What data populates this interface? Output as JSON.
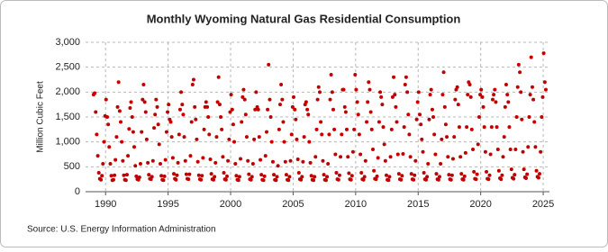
{
  "chart_data": {
    "type": "scatter",
    "title": "Monthly Wyoming Natural Gas Residential Consumption",
    "ylabel": "Million Cubic Feet",
    "source": "Source: U.S. Energy Information Administration",
    "color": "#c00000",
    "grid": true,
    "xlim": [
      1988.4,
      2025.5
    ],
    "xticks": [
      1990,
      1995,
      2000,
      2005,
      2010,
      2015,
      2020,
      2025
    ],
    "ylim": [
      0,
      3000
    ],
    "yticks": [
      0,
      {
        "value": 500,
        "label": "500"
      },
      {
        "value": 1000,
        "label": "1,000"
      },
      {
        "value": 1500,
        "label": "1,500"
      },
      {
        "value": 2000,
        "label": "2,000"
      },
      {
        "value": 2500,
        "label": "2,500"
      },
      {
        "value": 3000,
        "label": "3,000"
      }
    ],
    "x": [
      1989.04,
      1989.13,
      1989.21,
      1989.29,
      1989.38,
      1989.46,
      1989.54,
      1989.63,
      1989.71,
      1989.79,
      1989.88,
      1989.96,
      1990.04,
      1990.13,
      1990.21,
      1990.29,
      1990.38,
      1990.46,
      1990.54,
      1990.63,
      1990.71,
      1990.79,
      1990.88,
      1990.96,
      1991.04,
      1991.13,
      1991.21,
      1991.29,
      1991.38,
      1991.46,
      1991.54,
      1991.63,
      1991.71,
      1991.79,
      1991.88,
      1991.96,
      1992.04,
      1992.13,
      1992.21,
      1992.29,
      1992.38,
      1992.46,
      1992.54,
      1992.63,
      1992.71,
      1992.79,
      1992.88,
      1992.96,
      1993.04,
      1993.13,
      1993.21,
      1993.29,
      1993.38,
      1993.46,
      1993.54,
      1993.63,
      1993.71,
      1993.79,
      1993.88,
      1993.96,
      1994.04,
      1994.13,
      1994.21,
      1994.29,
      1994.38,
      1994.46,
      1994.54,
      1994.63,
      1994.71,
      1994.79,
      1994.88,
      1994.96,
      1995.04,
      1995.13,
      1995.21,
      1995.29,
      1995.38,
      1995.46,
      1995.54,
      1995.63,
      1995.71,
      1995.79,
      1995.88,
      1995.96,
      1996.04,
      1996.13,
      1996.21,
      1996.29,
      1996.38,
      1996.46,
      1996.54,
      1996.63,
      1996.71,
      1996.79,
      1996.88,
      1996.96,
      1997.04,
      1997.13,
      1997.21,
      1997.29,
      1997.38,
      1997.46,
      1997.54,
      1997.63,
      1997.71,
      1997.79,
      1997.88,
      1997.96,
      1998.04,
      1998.13,
      1998.21,
      1998.29,
      1998.38,
      1998.46,
      1998.54,
      1998.63,
      1998.71,
      1998.79,
      1998.88,
      1998.96,
      1999.04,
      1999.13,
      1999.21,
      1999.29,
      1999.38,
      1999.46,
      1999.54,
      1999.63,
      1999.71,
      1999.79,
      1999.88,
      1999.96,
      2000.04,
      2000.13,
      2000.21,
      2000.29,
      2000.38,
      2000.46,
      2000.54,
      2000.63,
      2000.71,
      2000.79,
      2000.88,
      2000.96,
      2001.04,
      2001.13,
      2001.21,
      2001.29,
      2001.38,
      2001.46,
      2001.54,
      2001.63,
      2001.71,
      2001.79,
      2001.88,
      2001.96,
      2002.04,
      2002.13,
      2002.21,
      2002.29,
      2002.38,
      2002.46,
      2002.54,
      2002.63,
      2002.71,
      2002.79,
      2002.88,
      2002.96,
      2003.04,
      2003.13,
      2003.21,
      2003.29,
      2003.38,
      2003.46,
      2003.54,
      2003.63,
      2003.71,
      2003.79,
      2003.88,
      2003.96,
      2004.04,
      2004.13,
      2004.21,
      2004.29,
      2004.38,
      2004.46,
      2004.54,
      2004.63,
      2004.71,
      2004.79,
      2004.88,
      2004.96,
      2005.04,
      2005.13,
      2005.21,
      2005.29,
      2005.38,
      2005.46,
      2005.54,
      2005.63,
      2005.71,
      2005.79,
      2005.88,
      2005.96,
      2006.04,
      2006.13,
      2006.21,
      2006.29,
      2006.38,
      2006.46,
      2006.54,
      2006.63,
      2006.71,
      2006.79,
      2006.88,
      2006.96,
      2007.04,
      2007.13,
      2007.21,
      2007.29,
      2007.38,
      2007.46,
      2007.54,
      2007.63,
      2007.71,
      2007.79,
      2007.88,
      2007.96,
      2008.04,
      2008.13,
      2008.21,
      2008.29,
      2008.38,
      2008.46,
      2008.54,
      2008.63,
      2008.71,
      2008.79,
      2008.88,
      2008.96,
      2009.04,
      2009.13,
      2009.21,
      2009.29,
      2009.38,
      2009.46,
      2009.54,
      2009.63,
      2009.71,
      2009.79,
      2009.88,
      2009.96,
      2010.04,
      2010.13,
      2010.21,
      2010.29,
      2010.38,
      2010.46,
      2010.54,
      2010.63,
      2010.71,
      2010.79,
      2010.88,
      2010.96,
      2011.04,
      2011.13,
      2011.21,
      2011.29,
      2011.38,
      2011.46,
      2011.54,
      2011.63,
      2011.71,
      2011.79,
      2011.88,
      2011.96,
      2012.04,
      2012.13,
      2012.21,
      2012.29,
      2012.38,
      2012.46,
      2012.54,
      2012.63,
      2012.71,
      2012.79,
      2012.88,
      2012.96,
      2013.04,
      2013.13,
      2013.21,
      2013.29,
      2013.38,
      2013.46,
      2013.54,
      2013.63,
      2013.71,
      2013.79,
      2013.88,
      2013.96,
      2014.04,
      2014.13,
      2014.21,
      2014.29,
      2014.38,
      2014.46,
      2014.54,
      2014.63,
      2014.71,
      2014.79,
      2014.88,
      2014.96,
      2015.04,
      2015.13,
      2015.21,
      2015.29,
      2015.38,
      2015.46,
      2015.54,
      2015.63,
      2015.71,
      2015.79,
      2015.88,
      2015.96,
      2016.04,
      2016.13,
      2016.21,
      2016.29,
      2016.38,
      2016.46,
      2016.54,
      2016.63,
      2016.71,
      2016.79,
      2016.88,
      2016.96,
      2017.04,
      2017.13,
      2017.21,
      2017.29,
      2017.38,
      2017.46,
      2017.54,
      2017.63,
      2017.71,
      2017.79,
      2017.88,
      2017.96,
      2018.04,
      2018.13,
      2018.21,
      2018.29,
      2018.38,
      2018.46,
      2018.54,
      2018.63,
      2018.71,
      2018.79,
      2018.88,
      2018.96,
      2019.04,
      2019.13,
      2019.21,
      2019.29,
      2019.38,
      2019.46,
      2019.54,
      2019.63,
      2019.71,
      2019.79,
      2019.88,
      2019.96,
      2020.04,
      2020.13,
      2020.21,
      2020.29,
      2020.38,
      2020.46,
      2020.54,
      2020.63,
      2020.71,
      2020.79,
      2020.88,
      2020.96,
      2021.04,
      2021.13,
      2021.21,
      2021.29,
      2021.38,
      2021.46,
      2021.54,
      2021.63,
      2021.71,
      2021.79,
      2021.88,
      2021.96,
      2022.04,
      2022.13,
      2022.21,
      2022.29,
      2022.38,
      2022.46,
      2022.54,
      2022.63,
      2022.71,
      2022.79,
      2022.88,
      2022.96,
      2023.04,
      2023.13,
      2023.21,
      2023.29,
      2023.38,
      2023.46,
      2023.54,
      2023.63,
      2023.71,
      2023.79,
      2023.88,
      2023.96,
      2024.04,
      2024.13,
      2024.21,
      2024.29,
      2024.38,
      2024.46,
      2024.54,
      2024.63,
      2024.71,
      2024.79,
      2024.88,
      2024.96,
      2025.04,
      2025.13,
      2025.21
    ],
    "values": [
      1950,
      1980,
      1600,
      1150,
      720,
      380,
      260,
      240,
      320,
      560,
      1000,
      1520,
      1850,
      1500,
      1350,
      900,
      560,
      320,
      230,
      240,
      330,
      640,
      1100,
      1700,
      2200,
      1620,
      1400,
      1000,
      620,
      330,
      240,
      230,
      340,
      720,
      1260,
      1680,
      1800,
      1500,
      1200,
      900,
      520,
      310,
      250,
      240,
      290,
      560,
      1200,
      1850,
      2150,
      1800,
      1600,
      1050,
      580,
      340,
      260,
      250,
      300,
      620,
      1280,
      1550,
      1850,
      1700,
      1350,
      950,
      560,
      320,
      240,
      230,
      310,
      640,
      1200,
      1600,
      1750,
      1450,
      1400,
      1100,
      680,
      360,
      260,
      240,
      330,
      580,
      1150,
      1650,
      2000,
      1750,
      1550,
      1100,
      620,
      350,
      260,
      250,
      350,
      720,
      1400,
      2150,
      2250,
      1700,
      1450,
      1050,
      600,
      330,
      250,
      240,
      320,
      680,
      1250,
      1700,
      1800,
      1700,
      1500,
      1150,
      650,
      360,
      250,
      240,
      300,
      580,
      1100,
      1800,
      2300,
      1750,
      1500,
      1250,
      700,
      380,
      250,
      240,
      310,
      620,
      1050,
      1600,
      1950,
      1650,
      1350,
      1000,
      560,
      320,
      240,
      230,
      300,
      660,
      1400,
      1900,
      2050,
      1850,
      1550,
      1100,
      620,
      350,
      250,
      240,
      300,
      560,
      1050,
      1650,
      2000,
      1700,
      1650,
      1100,
      640,
      340,
      240,
      230,
      310,
      720,
      1200,
      1650,
      2550,
      1850,
      1500,
      1000,
      600,
      340,
      240,
      230,
      300,
      520,
      1250,
      1750,
      2150,
      1850,
      1400,
      1000,
      600,
      340,
      240,
      230,
      300,
      620,
      1150,
      1700,
      1900,
      1650,
      1450,
      1050,
      650,
      380,
      250,
      240,
      300,
      600,
      1100,
      1750,
      1800,
      1650,
      1550,
      1000,
      580,
      320,
      240,
      230,
      300,
      700,
      1250,
      1850,
      2100,
      2000,
      1400,
      1150,
      620,
      340,
      240,
      230,
      300,
      560,
      1150,
      1850,
      2350,
      2000,
      1650,
      1250,
      750,
      380,
      250,
      240,
      330,
      700,
      1150,
      2050,
      2050,
      1700,
      1600,
      1250,
      700,
      370,
      250,
      240,
      320,
      800,
      1250,
      2350,
      2050,
      1800,
      1550,
      1150,
      750,
      380,
      250,
      240,
      300,
      620,
      1400,
      1800,
      2200,
      2050,
      1600,
      1250,
      850,
      420,
      260,
      250,
      310,
      680,
      1400,
      2000,
      1900,
      1750,
      1300,
      950,
      620,
      330,
      240,
      230,
      300,
      700,
      1250,
      1900,
      2300,
      1950,
      1700,
      1400,
      750,
      360,
      250,
      240,
      320,
      760,
      1300,
      2150,
      2300,
      2000,
      1550,
      1150,
      700,
      360,
      250,
      240,
      330,
      620,
      1450,
      1800,
      2000,
      1550,
      1350,
      1050,
      800,
      380,
      250,
      240,
      300,
      560,
      1450,
      1950,
      2050,
      1650,
      1500,
      1150,
      750,
      360,
      250,
      240,
      300,
      560,
      1050,
      1950,
      2400,
      1700,
      1350,
      1100,
      700,
      340,
      250,
      240,
      330,
      660,
      1100,
      1850,
      2050,
      2100,
      1750,
      1300,
      700,
      360,
      250,
      240,
      310,
      780,
      1300,
      1950,
      2200,
      2150,
      1900,
      1250,
      850,
      400,
      260,
      250,
      350,
      950,
      1500,
      1950,
      2050,
      1900,
      1700,
      1300,
      800,
      400,
      260,
      250,
      330,
      750,
      1300,
      1850,
      1950,
      2050,
      1800,
      1300,
      850,
      420,
      270,
      250,
      330,
      700,
      1100,
      1700,
      2150,
      1950,
      1800,
      1300,
      850,
      450,
      280,
      260,
      340,
      850,
      1500,
      2100,
      2550,
      2400,
      2000,
      1450,
      800,
      450,
      290,
      270,
      350,
      900,
      1500,
      1950,
      2700,
      2100,
      1850,
      1400,
      900,
      420,
      300,
      280,
      360,
      800,
      1500,
      1900,
      2780,
      2200,
      2050
    ]
  }
}
